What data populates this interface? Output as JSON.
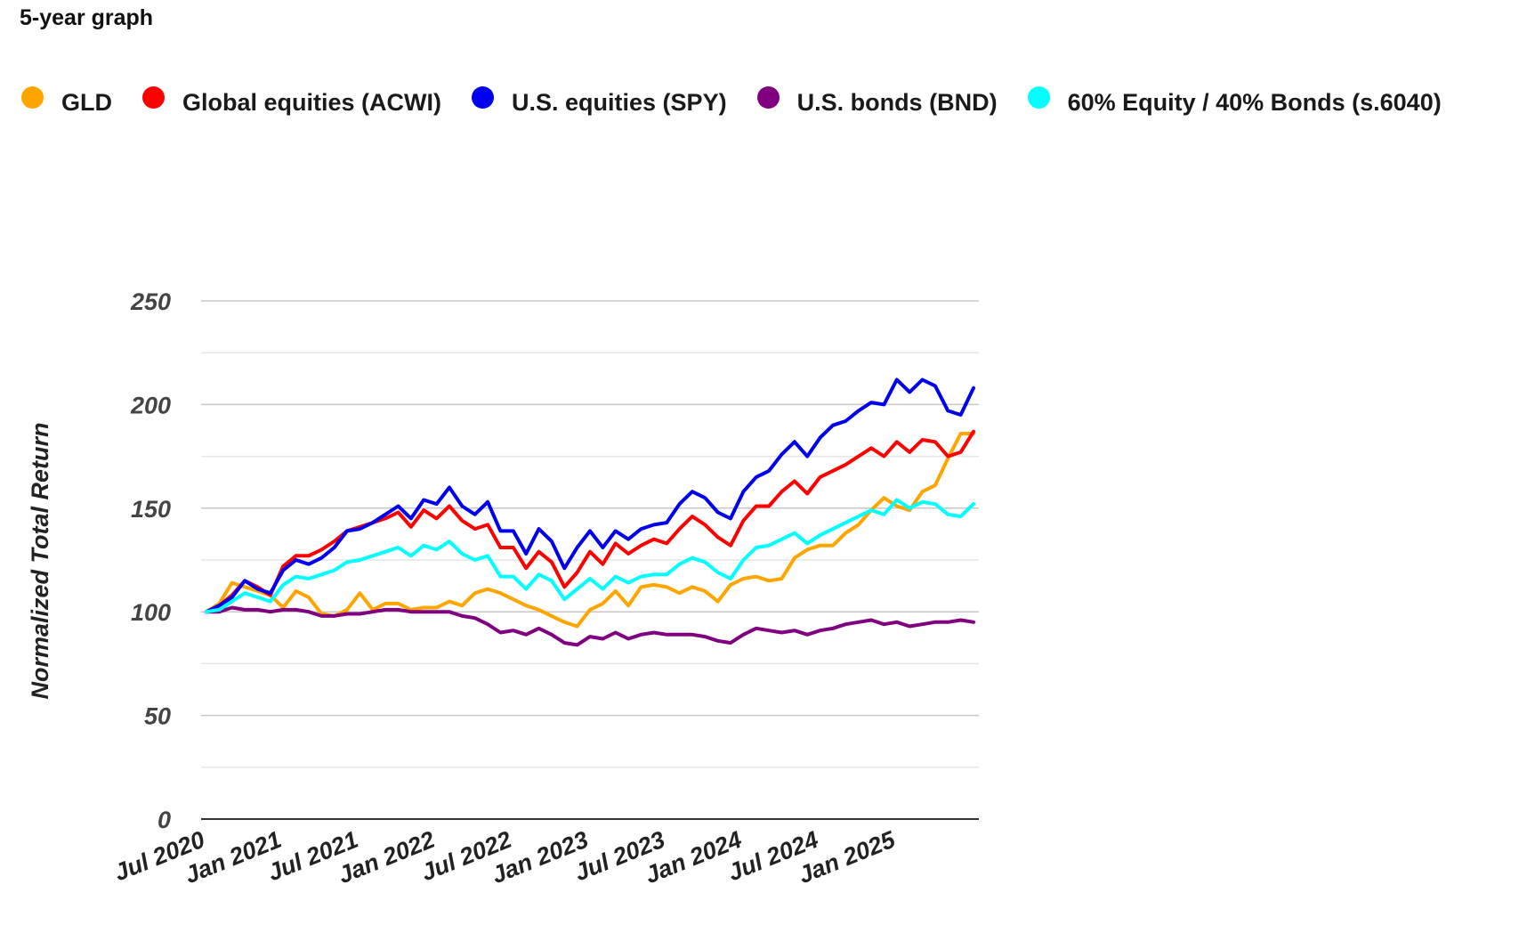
{
  "page_title": "5-year graph",
  "chart_data": {
    "type": "line",
    "title": "",
    "xlabel": "",
    "ylabel": "Normalized Total Return",
    "ylim": [
      0,
      250
    ],
    "yticks": [
      0,
      50,
      100,
      150,
      200,
      250
    ],
    "grid": true,
    "legend_position": "top",
    "x_tick_labels": [
      "Jul 2020",
      "Jan 2021",
      "Jul 2021",
      "Jan 2022",
      "Jul 2022",
      "Jan 2023",
      "Jul 2023",
      "Jan 2024",
      "Jul 2024",
      "Jan 2025"
    ],
    "series": [
      {
        "name": "GLD",
        "color": "#ffa500",
        "values": [
          100,
          104,
          114,
          112,
          110,
          108,
          102,
          110,
          107,
          99,
          98,
          101,
          109,
          101,
          104,
          104,
          101,
          102,
          102,
          105,
          103,
          109,
          111,
          109,
          106,
          103,
          101,
          98,
          95,
          93,
          101,
          104,
          110,
          103,
          112,
          113,
          112,
          109,
          112,
          110,
          105,
          113,
          116,
          117,
          115,
          116,
          126,
          130,
          132,
          132,
          138,
          142,
          149,
          155,
          151,
          149,
          158,
          161,
          174,
          186,
          186
        ]
      },
      {
        "name": "Global equities (ACWI)",
        "color": "#ff0000",
        "values": [
          100,
          103,
          108,
          115,
          112,
          108,
          122,
          127,
          127,
          130,
          134,
          139,
          141,
          143,
          145,
          148,
          141,
          149,
          145,
          151,
          144,
          140,
          142,
          131,
          131,
          121,
          129,
          124,
          112,
          119,
          129,
          123,
          133,
          128,
          132,
          135,
          133,
          140,
          146,
          142,
          136,
          132,
          144,
          151,
          151,
          158,
          163,
          157,
          165,
          168,
          171,
          175,
          179,
          175,
          182,
          177,
          183,
          182,
          175,
          177,
          187
        ]
      },
      {
        "name": "U.S. equities (SPY)",
        "color": "#0000ee",
        "values": [
          100,
          103,
          107,
          115,
          111,
          109,
          120,
          125,
          123,
          126,
          131,
          139,
          140,
          143,
          147,
          151,
          145,
          154,
          152,
          160,
          151,
          147,
          153,
          139,
          139,
          128,
          140,
          134,
          121,
          131,
          139,
          131,
          139,
          135,
          140,
          142,
          143,
          152,
          158,
          155,
          148,
          145,
          158,
          165,
          168,
          176,
          182,
          175,
          184,
          190,
          192,
          197,
          201,
          200,
          212,
          206,
          212,
          209,
          197,
          195,
          208
        ]
      },
      {
        "name": "U.S. bonds (BND)",
        "color": "#800080",
        "values": [
          100,
          100,
          102,
          101,
          101,
          100,
          101,
          101,
          100,
          98,
          98,
          99,
          99,
          100,
          101,
          101,
          100,
          100,
          100,
          100,
          98,
          97,
          94,
          90,
          91,
          89,
          92,
          89,
          85,
          84,
          88,
          87,
          90,
          87,
          89,
          90,
          89,
          89,
          89,
          88,
          86,
          85,
          89,
          92,
          91,
          90,
          91,
          89,
          91,
          92,
          94,
          95,
          96,
          94,
          95,
          93,
          94,
          95,
          95,
          96,
          95
        ]
      },
      {
        "name": "60% Equity / 40% Bonds (s.6040)",
        "color": "#00ffff",
        "values": [
          100,
          101,
          105,
          109,
          107,
          105,
          113,
          117,
          116,
          118,
          120,
          124,
          125,
          127,
          129,
          131,
          127,
          132,
          130,
          134,
          128,
          125,
          127,
          117,
          117,
          111,
          118,
          115,
          106,
          111,
          116,
          111,
          117,
          114,
          117,
          118,
          118,
          123,
          126,
          124,
          119,
          116,
          125,
          131,
          132,
          135,
          138,
          133,
          137,
          140,
          143,
          146,
          149,
          147,
          154,
          150,
          153,
          152,
          147,
          146,
          152
        ]
      }
    ]
  }
}
